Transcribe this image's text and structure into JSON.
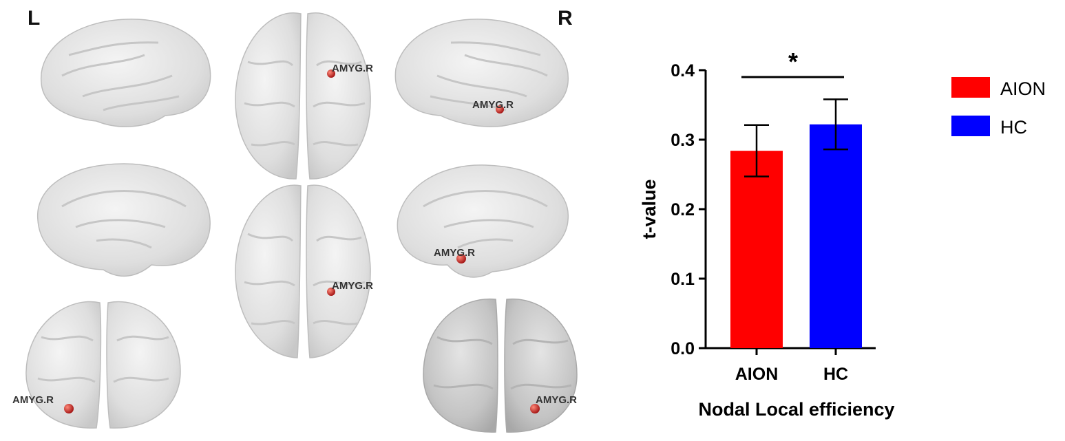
{
  "brain_panel": {
    "left_label": "L",
    "right_label": "R",
    "roi_label": "AMYG.R",
    "brain_color": "#e2e2e2",
    "node_color": "#c0392b"
  },
  "chart_data": {
    "type": "bar",
    "categories": [
      "AION",
      "HC"
    ],
    "values": [
      0.284,
      0.322
    ],
    "errors": [
      0.037,
      0.036
    ],
    "colors": [
      "#ff0000",
      "#0000ff"
    ],
    "title": "",
    "xlabel": "Nodal Local efficiency",
    "ylabel": "t-value",
    "ylim": [
      0,
      0.4
    ],
    "yticks": [
      0.0,
      0.1,
      0.2,
      0.3,
      0.4
    ],
    "ytick_labels": [
      "0.0",
      "0.1",
      "0.2",
      "0.3",
      "0.4"
    ],
    "legend": {
      "position": "right",
      "entries": [
        {
          "label": "AION",
          "color": "#ff0000"
        },
        {
          "label": "HC",
          "color": "#0000ff"
        }
      ]
    },
    "significance": {
      "label": "*",
      "between": [
        "AION",
        "HC"
      ]
    }
  }
}
